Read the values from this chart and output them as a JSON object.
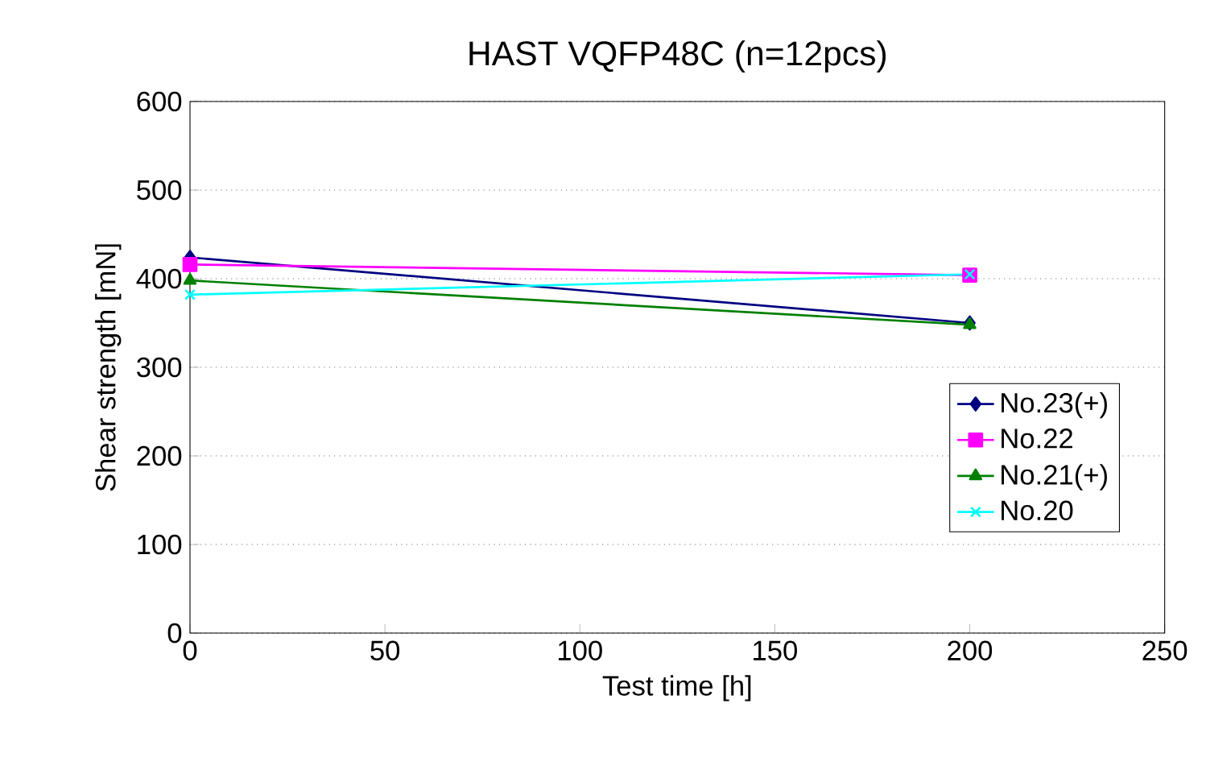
{
  "chart_data": {
    "type": "line",
    "title": "HAST VQFP48C (n=12pcs)",
    "xlabel": "Test time [h]",
    "ylabel": "Shear strength [mN]",
    "x": [
      0,
      200
    ],
    "xlim": [
      0,
      250
    ],
    "xticks": [
      0,
      50,
      100,
      150,
      200,
      250
    ],
    "ylim": [
      0,
      600
    ],
    "yticks": [
      0,
      100,
      200,
      300,
      400,
      500,
      600
    ],
    "grid": "y",
    "legend": "bottom right",
    "series": [
      {
        "name": "No.23(+)",
        "color": "#000080",
        "marker": "diamond",
        "values": [
          424,
          350
        ]
      },
      {
        "name": "No.22",
        "color": "#ff00ff",
        "marker": "square",
        "values": [
          416,
          404
        ]
      },
      {
        "name": "No.21(+)",
        "color": "#008000",
        "marker": "triangle",
        "values": [
          398,
          348
        ]
      },
      {
        "name": "No.20",
        "color": "#00ffff",
        "marker": "cross",
        "values": [
          382,
          405
        ]
      }
    ]
  }
}
